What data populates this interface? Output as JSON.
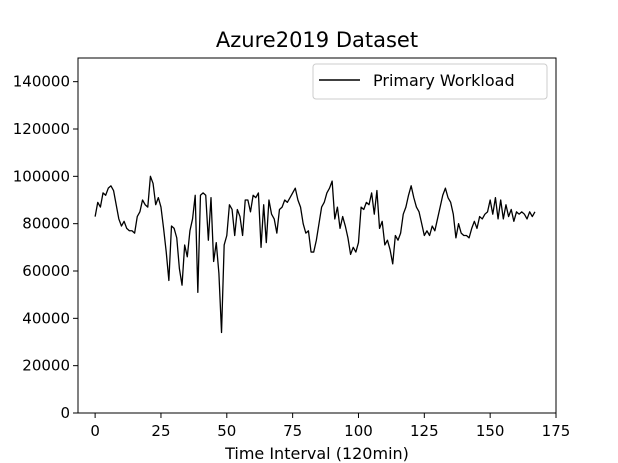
{
  "chart_data": {
    "type": "line",
    "title": "Azure2019 Dataset",
    "xlabel": "Time Interval (120min)",
    "ylabel": "",
    "xlim": [
      -6.5,
      175
    ],
    "ylim": [
      0,
      150000
    ],
    "xticks": [
      0,
      25,
      50,
      75,
      100,
      125,
      150,
      175
    ],
    "yticks": [
      0,
      20000,
      40000,
      60000,
      80000,
      100000,
      120000,
      140000
    ],
    "grid": false,
    "legend_position": "top-right",
    "series": [
      {
        "name": "Primary Workload",
        "color": "#000000",
        "x": [
          0,
          1,
          2,
          3,
          4,
          5,
          6,
          7,
          8,
          9,
          10,
          11,
          12,
          13,
          14,
          15,
          16,
          17,
          18,
          19,
          20,
          21,
          22,
          23,
          24,
          25,
          26,
          27,
          28,
          29,
          30,
          31,
          32,
          33,
          34,
          35,
          36,
          37,
          38,
          39,
          40,
          41,
          42,
          43,
          44,
          45,
          46,
          47,
          48,
          49,
          50,
          51,
          52,
          53,
          54,
          55,
          56,
          57,
          58,
          59,
          60,
          61,
          62,
          63,
          64,
          65,
          66,
          67,
          68,
          69,
          70,
          71,
          72,
          73,
          74,
          75,
          76,
          77,
          78,
          79,
          80,
          81,
          82,
          83,
          84,
          85,
          86,
          87,
          88,
          89,
          90,
          91,
          92,
          93,
          94,
          95,
          96,
          97,
          98,
          99,
          100,
          101,
          102,
          103,
          104,
          105,
          106,
          107,
          108,
          109,
          110,
          111,
          112,
          113,
          114,
          115,
          116,
          117,
          118,
          119,
          120,
          121,
          122,
          123,
          124,
          125,
          126,
          127,
          128,
          129,
          130,
          131,
          132,
          133,
          134,
          135,
          136,
          137,
          138,
          139,
          140,
          141,
          142,
          143,
          144,
          145,
          146,
          147,
          148,
          149,
          150,
          151,
          152,
          153,
          154,
          155,
          156,
          157,
          158,
          159,
          160,
          161,
          162,
          163,
          164,
          165,
          166,
          167
        ],
        "values": [
          83000,
          89000,
          87000,
          93000,
          92000,
          95000,
          96000,
          94000,
          88000,
          82000,
          79000,
          81000,
          78000,
          77000,
          77000,
          76000,
          83000,
          85000,
          90000,
          88000,
          87000,
          100000,
          97000,
          88000,
          91000,
          87000,
          78000,
          68000,
          56000,
          79000,
          78000,
          74000,
          61000,
          54000,
          71000,
          66000,
          77000,
          82000,
          92000,
          51000,
          92000,
          93000,
          92000,
          73000,
          91000,
          64000,
          72000,
          59000,
          34000,
          71000,
          75000,
          88000,
          86000,
          75000,
          86000,
          83000,
          75000,
          90000,
          90000,
          85000,
          92000,
          91000,
          93000,
          70000,
          88000,
          72000,
          90000,
          84000,
          82000,
          76000,
          86000,
          87000,
          90000,
          89000,
          91000,
          93000,
          95000,
          90000,
          87000,
          80000,
          76000,
          77000,
          68000,
          68000,
          73000,
          80000,
          87000,
          89000,
          93000,
          95000,
          98000,
          82000,
          87000,
          78000,
          83000,
          79000,
          74000,
          67000,
          70000,
          68000,
          72000,
          87000,
          86000,
          89000,
          88000,
          93000,
          84000,
          94000,
          78000,
          81000,
          71000,
          73000,
          69000,
          63000,
          75000,
          73000,
          76000,
          84000,
          87000,
          92000,
          96000,
          91000,
          87000,
          85000,
          80000,
          75000,
          77000,
          75000,
          79000,
          77000,
          82000,
          87000,
          92000,
          95000,
          91000,
          89000,
          84000,
          74000,
          80000,
          76000,
          75000,
          75000,
          74000,
          78000,
          81000,
          78000,
          83000,
          82000,
          84000,
          85000,
          90000,
          84000,
          91000,
          82000,
          90000,
          82000,
          88000,
          83000,
          86000,
          81000,
          85000,
          84000,
          85000,
          84000,
          82000,
          85000,
          83000,
          85000
        ]
      }
    ]
  }
}
